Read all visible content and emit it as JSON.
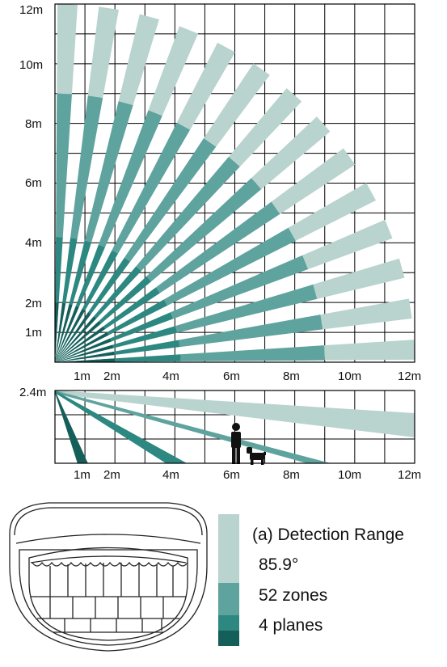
{
  "top_view": {
    "y_ticks": [
      "12m",
      "10m",
      "8m",
      "6m",
      "4m",
      "2m",
      "1m"
    ],
    "x_ticks": [
      "1m",
      "2m",
      "4m",
      "6m",
      "8m",
      "10m",
      "12m"
    ]
  },
  "side_view": {
    "height_label": "2.4m",
    "x_ticks": [
      "1m",
      "2m",
      "4m",
      "6m",
      "8m",
      "10m",
      "12m"
    ]
  },
  "legend": {
    "caption": "(a) Detection Range",
    "angle": "85.9°",
    "zones": "52 zones",
    "planes": "4 planes"
  },
  "colors": {
    "far_zone": "#b9d3cf",
    "mid_zone": "#5fa39e",
    "near_zone": "#2c8880",
    "nearest_zone": "#155f5a",
    "grid": "#000000"
  },
  "icons": [
    "sensor-housing-icon",
    "person-icon",
    "dog-icon"
  ]
}
